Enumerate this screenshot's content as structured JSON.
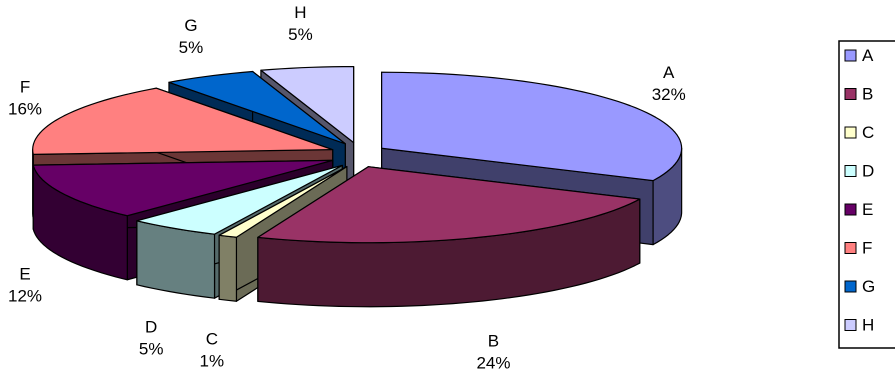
{
  "chart_data": {
    "type": "pie",
    "title": "",
    "categories": [
      "A",
      "B",
      "C",
      "D",
      "E",
      "F",
      "G",
      "H"
    ],
    "values": [
      32,
      24,
      1,
      5,
      12,
      16,
      5,
      5
    ],
    "labels": [
      {
        "name": "A",
        "pct": "32%"
      },
      {
        "name": "B",
        "pct": "24%"
      },
      {
        "name": "C",
        "pct": "1%"
      },
      {
        "name": "D",
        "pct": "5%"
      },
      {
        "name": "E",
        "pct": "12%"
      },
      {
        "name": "F",
        "pct": "16%"
      },
      {
        "name": "G",
        "pct": "5%"
      },
      {
        "name": "H",
        "pct": "5%"
      }
    ],
    "colors": [
      "#9999FF",
      "#993366",
      "#FFFFCC",
      "#CCFFFF",
      "#660066",
      "#FF8080",
      "#0066CC",
      "#CCCCFF"
    ],
    "style": "3d-exploded",
    "legend": {
      "position": "right",
      "entries": [
        "A",
        "B",
        "C",
        "D",
        "E",
        "F",
        "G",
        "H"
      ]
    }
  }
}
